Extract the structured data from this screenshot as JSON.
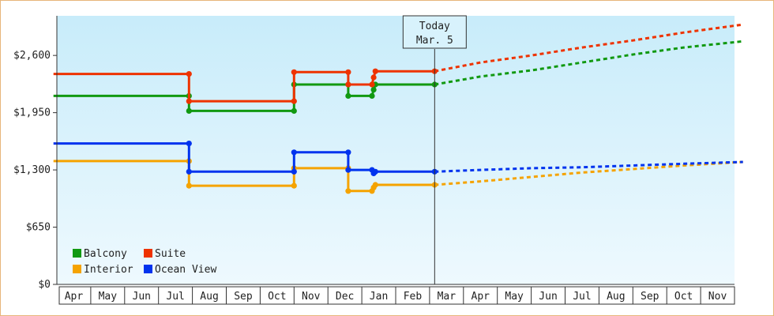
{
  "chart_data": {
    "type": "line",
    "today_label": [
      "Today",
      "Mar. 5"
    ],
    "y_ticks": [
      "$0",
      "$650",
      "$1,300",
      "$1,950",
      "$2,600"
    ],
    "y_tick_values": [
      0,
      650,
      1300,
      1950,
      2600
    ],
    "ylim": [
      0,
      3050
    ],
    "x_months": [
      "Apr",
      "May",
      "Jun",
      "Jul",
      "Aug",
      "Sep",
      "Oct",
      "Nov",
      "Dec",
      "Jan",
      "Feb",
      "Mar",
      "Apr",
      "May",
      "Jun",
      "Jul",
      "Aug",
      "Sep",
      "Oct",
      "Nov"
    ],
    "x_range": [
      0,
      20
    ],
    "today_x": 11.15,
    "legend": [
      {
        "name": "Balcony",
        "color": "#119911"
      },
      {
        "name": "Suite",
        "color": "#ee3300"
      },
      {
        "name": "Interior",
        "color": "#f5a300"
      },
      {
        "name": "Ocean View",
        "color": "#0033ee"
      }
    ],
    "series": [
      {
        "name": "Balcony",
        "color": "#119911",
        "history": [
          [
            -0.1,
            2140
          ],
          [
            3.9,
            2140
          ],
          [
            3.9,
            1970
          ],
          [
            7.0,
            1970
          ],
          [
            7.0,
            2270
          ],
          [
            8.6,
            2270
          ],
          [
            8.6,
            2140
          ],
          [
            9.3,
            2140
          ],
          [
            9.35,
            2210
          ],
          [
            9.4,
            2270
          ],
          [
            11.15,
            2270
          ]
        ],
        "markers": [
          [
            3.9,
            2140
          ],
          [
            3.9,
            1970
          ],
          [
            7.0,
            1970
          ],
          [
            7.0,
            2270
          ],
          [
            8.6,
            2270
          ],
          [
            8.6,
            2140
          ],
          [
            9.3,
            2140
          ],
          [
            9.35,
            2210
          ],
          [
            9.4,
            2270
          ],
          [
            11.15,
            2270
          ]
        ],
        "forecast": [
          [
            11.15,
            2270
          ],
          [
            12.5,
            2360
          ],
          [
            14,
            2430
          ],
          [
            15.5,
            2520
          ],
          [
            17,
            2610
          ],
          [
            18.5,
            2690
          ],
          [
            20.25,
            2760
          ]
        ]
      },
      {
        "name": "Suite",
        "color": "#ee3300",
        "history": [
          [
            -0.1,
            2390
          ],
          [
            3.9,
            2390
          ],
          [
            3.9,
            2080
          ],
          [
            7.0,
            2080
          ],
          [
            7.0,
            2410
          ],
          [
            8.6,
            2410
          ],
          [
            8.6,
            2270
          ],
          [
            9.3,
            2270
          ],
          [
            9.35,
            2350
          ],
          [
            9.4,
            2420
          ],
          [
            11.15,
            2420
          ]
        ],
        "markers": [
          [
            3.9,
            2390
          ],
          [
            3.9,
            2080
          ],
          [
            7.0,
            2080
          ],
          [
            7.0,
            2410
          ],
          [
            8.6,
            2410
          ],
          [
            8.6,
            2270
          ],
          [
            9.3,
            2270
          ],
          [
            9.35,
            2350
          ],
          [
            9.4,
            2420
          ],
          [
            11.15,
            2420
          ]
        ],
        "forecast": [
          [
            11.15,
            2420
          ],
          [
            12.5,
            2520
          ],
          [
            14,
            2600
          ],
          [
            15.5,
            2690
          ],
          [
            17,
            2770
          ],
          [
            18.5,
            2860
          ],
          [
            20.25,
            2950
          ]
        ]
      },
      {
        "name": "Interior",
        "color": "#f5a300",
        "history": [
          [
            -0.1,
            1400
          ],
          [
            3.9,
            1400
          ],
          [
            3.9,
            1120
          ],
          [
            7.0,
            1120
          ],
          [
            7.0,
            1320
          ],
          [
            8.6,
            1320
          ],
          [
            8.6,
            1060
          ],
          [
            9.3,
            1060
          ],
          [
            9.35,
            1100
          ],
          [
            9.4,
            1130
          ],
          [
            11.15,
            1130
          ]
        ],
        "markers": [
          [
            3.9,
            1400
          ],
          [
            3.9,
            1120
          ],
          [
            7.0,
            1120
          ],
          [
            7.0,
            1320
          ],
          [
            8.6,
            1320
          ],
          [
            8.6,
            1060
          ],
          [
            9.3,
            1060
          ],
          [
            9.35,
            1100
          ],
          [
            9.4,
            1130
          ],
          [
            11.15,
            1130
          ]
        ],
        "forecast": [
          [
            11.15,
            1130
          ],
          [
            12.5,
            1170
          ],
          [
            14,
            1220
          ],
          [
            15.5,
            1270
          ],
          [
            17,
            1310
          ],
          [
            18.5,
            1350
          ],
          [
            20.25,
            1390
          ]
        ]
      },
      {
        "name": "Ocean View",
        "color": "#0033ee",
        "history": [
          [
            -0.1,
            1600
          ],
          [
            3.9,
            1600
          ],
          [
            3.9,
            1280
          ],
          [
            7.0,
            1280
          ],
          [
            7.0,
            1500
          ],
          [
            8.6,
            1500
          ],
          [
            8.6,
            1300
          ],
          [
            9.3,
            1300
          ],
          [
            9.35,
            1260
          ],
          [
            9.4,
            1280
          ],
          [
            11.15,
            1280
          ]
        ],
        "markers": [
          [
            3.9,
            1600
          ],
          [
            3.9,
            1280
          ],
          [
            7.0,
            1280
          ],
          [
            7.0,
            1500
          ],
          [
            8.6,
            1500
          ],
          [
            8.6,
            1300
          ],
          [
            9.3,
            1300
          ],
          [
            9.35,
            1260
          ],
          [
            9.4,
            1280
          ],
          [
            11.15,
            1280
          ]
        ],
        "forecast": [
          [
            11.15,
            1280
          ],
          [
            12.5,
            1300
          ],
          [
            14,
            1320
          ],
          [
            15.5,
            1330
          ],
          [
            17,
            1350
          ],
          [
            18.5,
            1370
          ],
          [
            20.25,
            1390
          ]
        ]
      }
    ]
  }
}
